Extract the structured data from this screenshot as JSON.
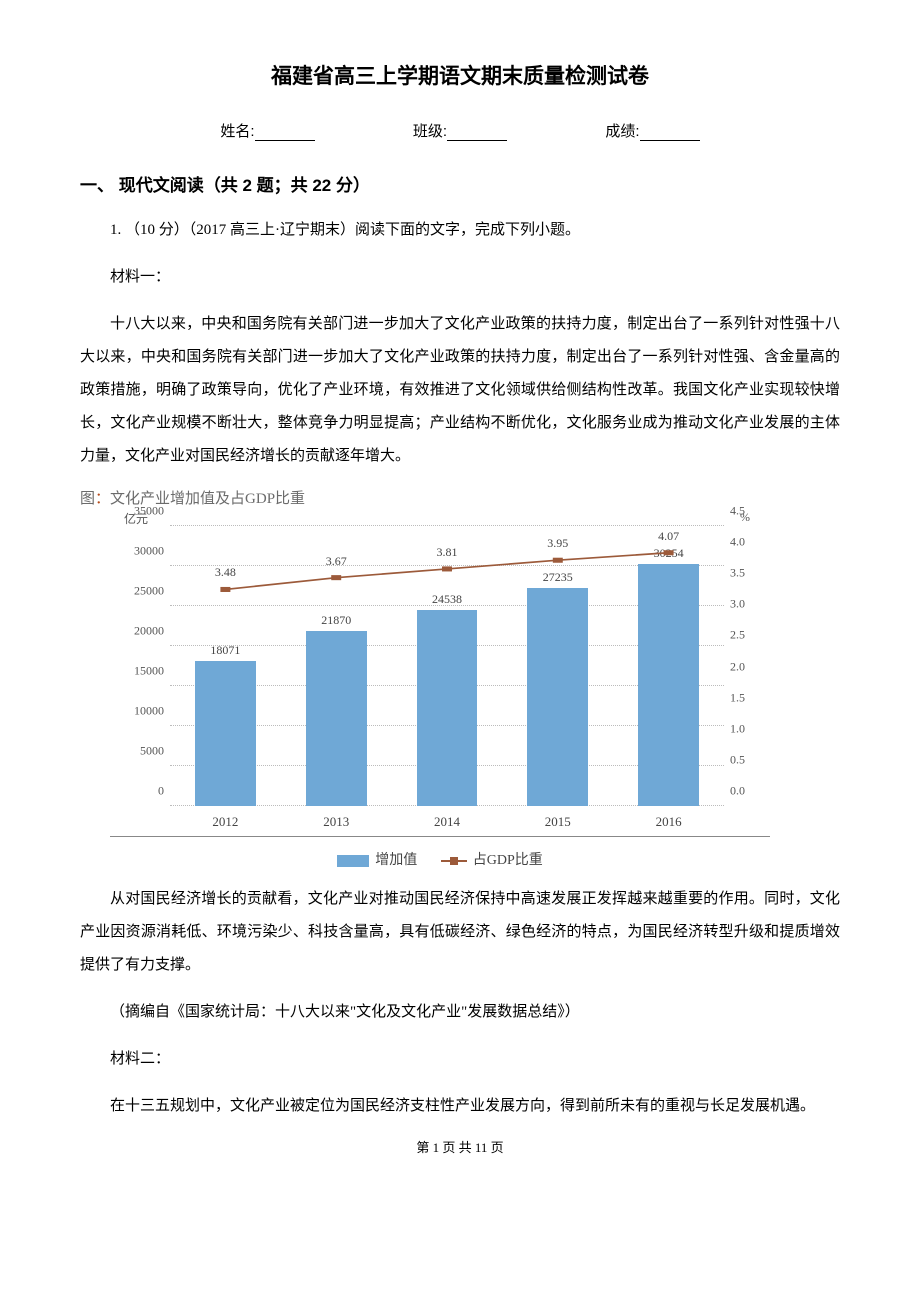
{
  "title": "福建省高三上学期语文期末质量检测试卷",
  "info": {
    "name_label": "姓名:",
    "class_label": "班级:",
    "score_label": "成绩:"
  },
  "section1": {
    "header": "一、 现代文阅读（共 2 题；共 22 分）",
    "q1_lead": "1. （10 分）（2017 高三上·辽宁期末）阅读下面的文字，完成下列小题。",
    "mat1_label": "材料一：",
    "mat1_p1": "十八大以来，中央和国务院有关部门进一步加大了文化产业政策的扶持力度，制定出台了一系列针对性强十八大以来，中央和国务院有关部门进一步加大了文化产业政策的扶持力度，制定出台了一系列针对性强、含金量高的政策措施，明确了政策导向，优化了产业环境，有效推进了文化领域供给侧结构性改革。我国文化产业实现较快增长，文化产业规模不断壮大，整体竞争力明显提高；产业结构不断优化，文化服务业成为推动文化产业发展的主体力量，文化产业对国民经济增长的贡献逐年增大。",
    "chart_caption_prefix": "图",
    "chart_caption_colon": "：",
    "chart_caption_text": "文化产业增加值及占GDP比重",
    "mat1_p2": "从对国民经济增长的贡献看，文化产业对推动国民经济保持中高速发展正发挥越来越重要的作用。同时，文化产业因资源消耗低、环境污染少、科技含量高，具有低碳经济、绿色经济的特点，为国民经济转型升级和提质增效提供了有力支撑。",
    "mat1_src": "（摘编自《国家统计局：十八大以来\"文化及文化产业\"发展数据总结》）",
    "mat2_label": "材料二：",
    "mat2_p1": "在十三五规划中，文化产业被定位为国民经济支柱性产业发展方向，得到前所未有的重视与长足发展机遇。"
  },
  "chart": {
    "type": "bar+line",
    "categories": [
      "2012",
      "2013",
      "2014",
      "2015",
      "2016"
    ],
    "bar_values": [
      18071,
      21870,
      24538,
      27235,
      30254
    ],
    "line_values": [
      3.48,
      3.67,
      3.81,
      3.95,
      4.07
    ],
    "bar_color": "#6fa8d6",
    "line_color": "#9c5a3a",
    "grid_color": "#bcbcbc",
    "background_color": "#ffffff",
    "y1_title": "亿元",
    "y2_title": "%",
    "y1_max": 35000,
    "y1_step": 5000,
    "y2_max": 4.5,
    "y2_step": 0.5,
    "bar_width_pct": 11,
    "slot_width_pct": 20,
    "legend_bar": "增加值",
    "legend_line": "占GDP比重",
    "label_fontsize": 12
  },
  "footer": {
    "page_current": "1",
    "page_total": "11",
    "tpl_prefix": "第 ",
    "tpl_mid": " 页 共 ",
    "tpl_suffix": " 页"
  }
}
